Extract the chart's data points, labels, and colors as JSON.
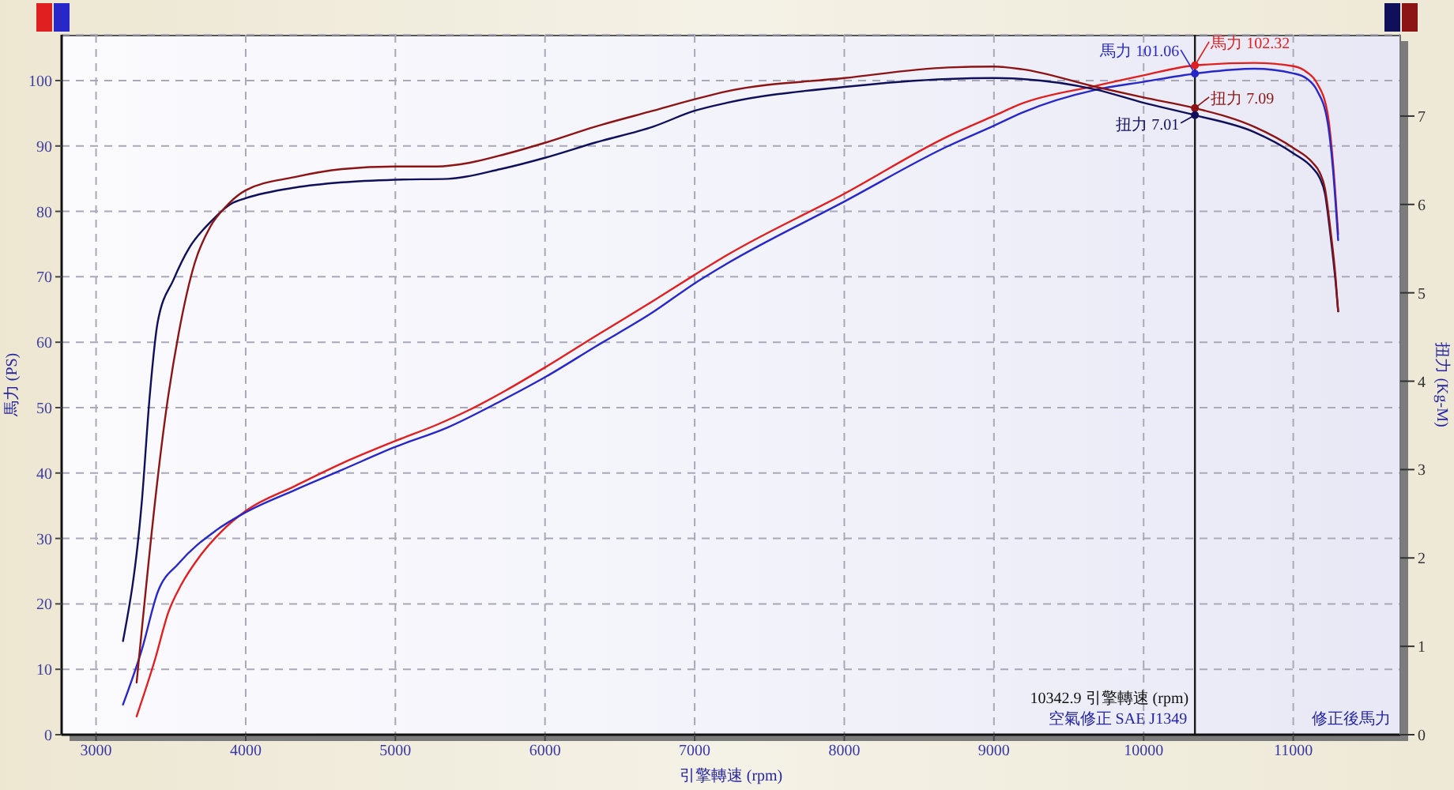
{
  "chart_data": {
    "type": "line",
    "xlabel": "引擎轉速 (rpm)",
    "ylabel": "馬力 (PS)",
    "y2label": "扭力 (Kg-M)",
    "xlim": [
      2770,
      11715
    ],
    "xticks": [
      3000,
      4000,
      5000,
      6000,
      7000,
      8000,
      9000,
      10000,
      11000
    ],
    "ylim": [
      0,
      107
    ],
    "yticks": [
      0,
      10,
      20,
      30,
      40,
      50,
      60,
      70,
      80,
      90,
      100
    ],
    "y2lim": [
      0,
      7.92
    ],
    "y2ticks": [
      0,
      1,
      2,
      3,
      4,
      5,
      6,
      7
    ],
    "grid": true,
    "series": [
      {
        "color": "#e02020",
        "x": [
          3271,
          3394,
          3483,
          3571,
          3694,
          3835,
          4000,
          4328,
          4645,
          5000,
          5279,
          5490,
          5736,
          6004,
          6335,
          6722,
          7000,
          7215,
          8000,
          8695,
          9000,
          9188,
          9681,
          10000,
          10342.9,
          10738,
          11000,
          11090,
          11156,
          11230,
          11265,
          11300
        ],
        "values": [
          2.8,
          11.5,
          18.7,
          23.0,
          27.3,
          31.0,
          34.2,
          38.0,
          41.5,
          44.9,
          47.4,
          49.6,
          52.6,
          56.2,
          60.9,
          66.3,
          70.3,
          73.3,
          82.7,
          91.5,
          94.6,
          96.5,
          99.2,
          100.8,
          102.32,
          102.7,
          102.2,
          101.3,
          99.7,
          94.9,
          87.6,
          76.5
        ]
      },
      {
        "color": "#2828c8",
        "x": [
          3180,
          3306,
          3412,
          3553,
          3800,
          4000,
          4328,
          4645,
          5000,
          5352,
          5704,
          6004,
          6335,
          6722,
          7000,
          7215,
          8000,
          8695,
          9000,
          9188,
          9681,
          10000,
          10342.9,
          10738,
          11000,
          11090,
          11156,
          11230,
          11265,
          11300
        ],
        "values": [
          4.6,
          13.0,
          21.8,
          26.2,
          31.2,
          34.0,
          37.4,
          40.5,
          44.0,
          47.0,
          51.0,
          54.7,
          59.3,
          64.6,
          69.0,
          72.0,
          81.5,
          90.0,
          93.1,
          95.1,
          98.6,
          99.8,
          101.06,
          101.8,
          101.1,
          100.3,
          98.6,
          93.6,
          86.5,
          75.6
        ]
      },
      {
        "color": "#10105a",
        "axis": "y2",
        "x": [
          3180,
          3306,
          3359,
          3412,
          3518,
          3623,
          3764,
          3905,
          4000,
          4328,
          4645,
          5000,
          5352,
          5704,
          6004,
          6335,
          6722,
          7000,
          7215,
          8000,
          8695,
          9000,
          9188,
          9681,
          10000,
          10342.9,
          10738,
          11000,
          11125,
          11177,
          11212,
          11248,
          11283,
          11300
        ],
        "values": [
          1.06,
          2.64,
          3.84,
          4.67,
          5.15,
          5.51,
          5.8,
          6.01,
          6.07,
          6.19,
          6.25,
          6.28,
          6.29,
          6.4,
          6.53,
          6.7,
          6.88,
          7.06,
          7.15,
          7.33,
          7.42,
          7.43,
          7.42,
          7.3,
          7.15,
          7.01,
          6.82,
          6.58,
          6.42,
          6.3,
          6.12,
          5.66,
          5.12,
          4.79
        ]
      },
      {
        "color": "#8c1414",
        "axis": "y2",
        "x": [
          3271,
          3483,
          3553,
          3658,
          3764,
          3870,
          4000,
          4328,
          4645,
          5000,
          5279,
          5490,
          5736,
          6004,
          6335,
          6722,
          7000,
          7215,
          8000,
          8695,
          9000,
          9188,
          9681,
          10000,
          10342.9,
          10738,
          11000,
          11125,
          11177,
          11212,
          11248,
          11283,
          11300
        ],
        "values": [
          0.59,
          3.84,
          4.55,
          5.33,
          5.75,
          5.98,
          6.16,
          6.31,
          6.4,
          6.43,
          6.43,
          6.47,
          6.57,
          6.7,
          6.88,
          7.06,
          7.19,
          7.28,
          7.43,
          7.55,
          7.56,
          7.53,
          7.33,
          7.21,
          7.09,
          6.88,
          6.64,
          6.48,
          6.36,
          6.18,
          5.72,
          5.17,
          4.79
        ]
      }
    ],
    "ref_lines": [
      {
        "axis": "x",
        "value": 10342.9,
        "label": "10342.9 引擎轉速 (rpm)",
        "color": "#1a1a1a"
      }
    ],
    "annotations": [
      {
        "text": "馬力 101.06",
        "x": 10342.9,
        "y": 101.06
      },
      {
        "text": "馬力 102.32",
        "x": 10342.9,
        "y": 102.32
      },
      "扭力 7.09",
      "扭力 7.01",
      "空氣修正 SAE J1349",
      "修正後馬力"
    ]
  }
}
